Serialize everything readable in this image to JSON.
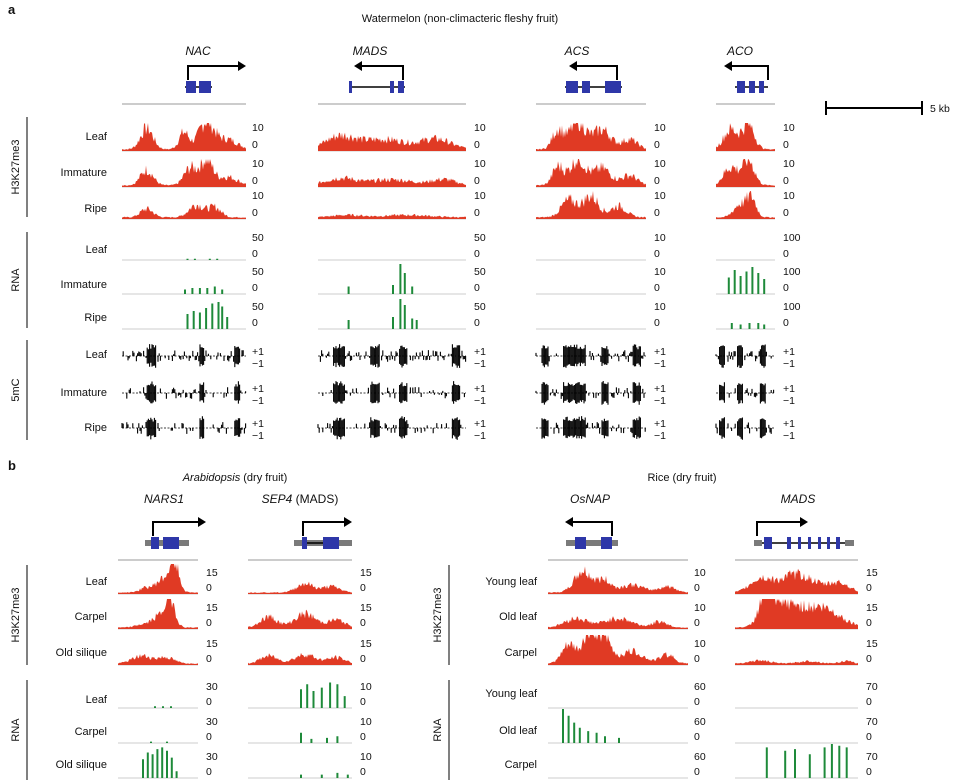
{
  "panel_a": {
    "letter": "a",
    "title": "Watermelon (non-climacteric fleshy fruit)",
    "scale_bar": "5 kb",
    "genes": [
      "NAC",
      "MADS",
      "ACS",
      "ACO"
    ],
    "groups": [
      "H3K27me3",
      "RNA",
      "5mC"
    ],
    "rows": [
      "Leaf",
      "Immature",
      "Ripe"
    ],
    "h3k27_scale": {
      "top": "10",
      "bottom": "0"
    },
    "rna_scales": [
      {
        "top": "50",
        "bottom": "0"
      },
      {
        "top": "50",
        "bottom": "0"
      },
      {
        "top": "10",
        "bottom": "0"
      },
      {
        "top": "100",
        "bottom": "0"
      }
    ],
    "mc_scale": {
      "top": "+1",
      "bottom": "−1"
    }
  },
  "panel_b": {
    "letter": "b",
    "left_title_italic": "Arabidopsis",
    "left_title_rest": " (dry fruit)",
    "right_title": "Rice (dry fruit)",
    "left_genes": {
      "g1": "NARS1",
      "g2_italic": "SEP4",
      "g2_rest": " (MADS)"
    },
    "right_genes": [
      "OsNAP",
      "MADS"
    ],
    "left_rows": [
      "Leaf",
      "Carpel",
      "Old silique"
    ],
    "right_rows": [
      "Young leaf",
      "Old leaf",
      "Carpel"
    ],
    "groups": [
      "H3K27me3",
      "RNA"
    ],
    "left_h3k27_scale": [
      {
        "top": "15",
        "bottom": "0"
      },
      {
        "top": "15",
        "bottom": "0"
      }
    ],
    "left_rna_scale": [
      {
        "top": "30",
        "bottom": "0"
      },
      {
        "top": "10",
        "bottom": "0"
      }
    ],
    "right_h3k27_scale": [
      {
        "top": "10",
        "bottom": "0"
      },
      {
        "top": "15",
        "bottom": "0"
      }
    ],
    "right_rna_scale": [
      {
        "top": "60",
        "bottom": "0"
      },
      {
        "top": "70",
        "bottom": "0"
      }
    ]
  },
  "colors": {
    "h3k27me3": "#e03a24",
    "rna": "#1e8a3a",
    "mc": "#000000",
    "exon": "#2e37a8",
    "utr": "#7a7a7a"
  }
}
